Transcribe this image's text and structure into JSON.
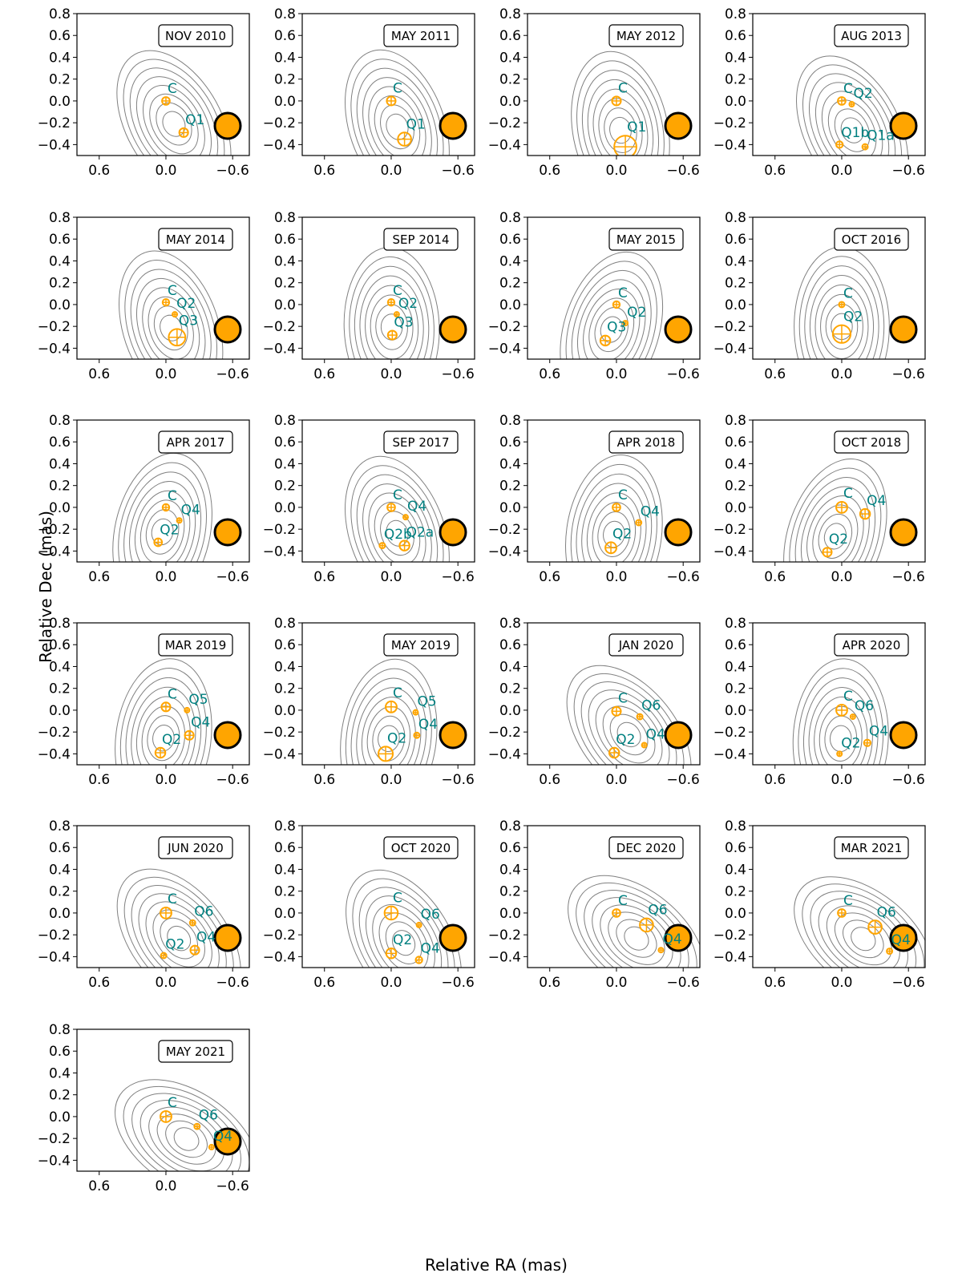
{
  "figure": {
    "xlabel": "Relative RA (mas)",
    "ylabel": "Relative Dec (mas)"
  },
  "style": {
    "component_color": "#FFA500",
    "label_color": "#008080",
    "contour_color": "#808080",
    "beam_fill": "#FFA500",
    "beam_edge": "#000000"
  },
  "chart_data": [
    {
      "type": "scatter",
      "title": "NOV 2010",
      "xlim": [
        0.8,
        -0.75
      ],
      "ylim": [
        -0.5,
        0.8
      ],
      "xticks": [
        "−0.6",
        "0.0",
        "0.6"
      ],
      "yticks": [
        "0.8",
        "0.6",
        "0.4",
        "0.2",
        "0.0",
        "−0.2",
        "−0.4"
      ],
      "components": [
        {
          "label": "C",
          "ra": 0.0,
          "dec": 0.0,
          "size": 0.07
        },
        {
          "label": "Q1",
          "ra": -0.16,
          "dec": -0.29,
          "size": 0.08
        }
      ]
    },
    {
      "type": "scatter",
      "title": "MAY 2011",
      "xlim": [
        0.8,
        -0.75
      ],
      "ylim": [
        -0.5,
        0.8
      ],
      "xticks": [
        "−0.6",
        "0.0",
        "0.6"
      ],
      "yticks": [
        "0.8",
        "0.6",
        "0.4",
        "0.2",
        "0.0",
        "−0.2",
        "−0.4"
      ],
      "components": [
        {
          "label": "C",
          "ra": 0.0,
          "dec": 0.0,
          "size": 0.08
        },
        {
          "label": "Q1",
          "ra": -0.12,
          "dec": -0.35,
          "size": 0.12
        }
      ]
    },
    {
      "type": "scatter",
      "title": "MAY 2012",
      "xlim": [
        0.8,
        -0.75
      ],
      "ylim": [
        -0.5,
        0.8
      ],
      "xticks": [
        "−0.6",
        "0.0",
        "0.6"
      ],
      "yticks": [
        "0.8",
        "0.6",
        "0.4",
        "0.2",
        "0.0",
        "−0.2",
        "−0.4"
      ],
      "components": [
        {
          "label": "C",
          "ra": 0.0,
          "dec": 0.0,
          "size": 0.08
        },
        {
          "label": "Q1",
          "ra": -0.08,
          "dec": -0.42,
          "size": 0.2
        }
      ]
    },
    {
      "type": "scatter",
      "title": "AUG 2013",
      "xlim": [
        0.8,
        -0.75
      ],
      "ylim": [
        -0.5,
        0.8
      ],
      "xticks": [
        "−0.6",
        "0.0",
        "0.6"
      ],
      "yticks": [
        "0.8",
        "0.6",
        "0.4",
        "0.2",
        "0.0",
        "−0.2",
        "−0.4"
      ],
      "components": [
        {
          "label": "C",
          "ra": 0.0,
          "dec": 0.0,
          "size": 0.07
        },
        {
          "label": "Q2",
          "ra": -0.09,
          "dec": -0.03,
          "size": 0.025
        },
        {
          "label": "Q1a",
          "ra": -0.21,
          "dec": -0.42,
          "size": 0.05
        },
        {
          "label": "Q1b",
          "ra": 0.02,
          "dec": -0.4,
          "size": 0.06
        }
      ]
    },
    {
      "type": "scatter",
      "title": "MAY 2014",
      "xlim": [
        0.8,
        -0.75
      ],
      "ylim": [
        -0.5,
        0.8
      ],
      "xticks": [
        "−0.6",
        "0.0",
        "0.6"
      ],
      "yticks": [
        "0.8",
        "0.6",
        "0.4",
        "0.2",
        "0.0",
        "−0.2",
        "−0.4"
      ],
      "components": [
        {
          "label": "C",
          "ra": 0.0,
          "dec": 0.02,
          "size": 0.06
        },
        {
          "label": "Q2",
          "ra": -0.08,
          "dec": -0.09,
          "size": 0.04
        },
        {
          "label": "Q3",
          "ra": -0.1,
          "dec": -0.3,
          "size": 0.15
        }
      ]
    },
    {
      "type": "scatter",
      "title": "SEP 2014",
      "xlim": [
        0.8,
        -0.75
      ],
      "ylim": [
        -0.5,
        0.8
      ],
      "xticks": [
        "−0.6",
        "0.0",
        "0.6"
      ],
      "yticks": [
        "0.8",
        "0.6",
        "0.4",
        "0.2",
        "0.0",
        "−0.2",
        "−0.4"
      ],
      "components": [
        {
          "label": "C",
          "ra": 0.0,
          "dec": 0.02,
          "size": 0.06
        },
        {
          "label": "Q2",
          "ra": -0.05,
          "dec": -0.09,
          "size": 0.04
        },
        {
          "label": "Q3",
          "ra": -0.01,
          "dec": -0.28,
          "size": 0.08
        }
      ]
    },
    {
      "type": "scatter",
      "title": "MAY 2015",
      "xlim": [
        0.8,
        -0.75
      ],
      "ylim": [
        -0.5,
        0.8
      ],
      "xticks": [
        "−0.6",
        "0.0",
        "0.6"
      ],
      "yticks": [
        "0.8",
        "0.6",
        "0.4",
        "0.2",
        "0.0",
        "−0.2",
        "−0.4"
      ],
      "components": [
        {
          "label": "C",
          "ra": 0.0,
          "dec": 0.0,
          "size": 0.06
        },
        {
          "label": "Q2",
          "ra": -0.08,
          "dec": -0.17,
          "size": 0.04
        },
        {
          "label": "Q3",
          "ra": 0.1,
          "dec": -0.33,
          "size": 0.09
        }
      ]
    },
    {
      "type": "scatter",
      "title": "OCT 2016",
      "xlim": [
        0.8,
        -0.75
      ],
      "ylim": [
        -0.5,
        0.8
      ],
      "xticks": [
        "−0.6",
        "0.0",
        "0.6"
      ],
      "yticks": [
        "0.8",
        "0.6",
        "0.4",
        "0.2",
        "0.0",
        "−0.2",
        "−0.4"
      ],
      "components": [
        {
          "label": "C",
          "ra": 0.0,
          "dec": 0.0,
          "size": 0.05
        },
        {
          "label": "Q2",
          "ra": 0.0,
          "dec": -0.27,
          "size": 0.16
        }
      ]
    },
    {
      "type": "scatter",
      "title": "APR 2017",
      "xlim": [
        0.8,
        -0.75
      ],
      "ylim": [
        -0.5,
        0.8
      ],
      "xticks": [
        "−0.6",
        "0.0",
        "0.6"
      ],
      "yticks": [
        "0.8",
        "0.6",
        "0.4",
        "0.2",
        "0.0",
        "−0.2",
        "−0.4"
      ],
      "components": [
        {
          "label": "C",
          "ra": 0.0,
          "dec": 0.0,
          "size": 0.06
        },
        {
          "label": "Q4",
          "ra": -0.12,
          "dec": -0.12,
          "size": 0.04
        },
        {
          "label": "Q2",
          "ra": 0.07,
          "dec": -0.32,
          "size": 0.07
        }
      ]
    },
    {
      "type": "scatter",
      "title": "SEP 2017",
      "xlim": [
        0.8,
        -0.75
      ],
      "ylim": [
        -0.5,
        0.8
      ],
      "xticks": [
        "−0.6",
        "0.0",
        "0.6"
      ],
      "yticks": [
        "0.8",
        "0.6",
        "0.4",
        "0.2",
        "0.0",
        "−0.2",
        "−0.4"
      ],
      "components": [
        {
          "label": "C",
          "ra": 0.0,
          "dec": 0.0,
          "size": 0.07
        },
        {
          "label": "Q4",
          "ra": -0.13,
          "dec": -0.09,
          "size": 0.04
        },
        {
          "label": "Q2a",
          "ra": -0.12,
          "dec": -0.35,
          "size": 0.09
        },
        {
          "label": "Q2b",
          "ra": 0.08,
          "dec": -0.35,
          "size": 0.05
        }
      ]
    },
    {
      "type": "scatter",
      "title": "APR 2018",
      "xlim": [
        0.8,
        -0.75
      ],
      "ylim": [
        -0.5,
        0.8
      ],
      "xticks": [
        "−0.6",
        "0.0",
        "0.6"
      ],
      "yticks": [
        "0.8",
        "0.6",
        "0.4",
        "0.2",
        "0.0",
        "−0.2",
        "−0.4"
      ],
      "components": [
        {
          "label": "C",
          "ra": 0.0,
          "dec": 0.0,
          "size": 0.07
        },
        {
          "label": "Q4",
          "ra": -0.2,
          "dec": -0.14,
          "size": 0.05
        },
        {
          "label": "Q2",
          "ra": 0.05,
          "dec": -0.37,
          "size": 0.1
        }
      ]
    },
    {
      "type": "scatter",
      "title": "OCT 2018",
      "xlim": [
        0.8,
        -0.75
      ],
      "ylim": [
        -0.5,
        0.8
      ],
      "xticks": [
        "−0.6",
        "0.0",
        "0.6"
      ],
      "yticks": [
        "0.8",
        "0.6",
        "0.4",
        "0.2",
        "0.0",
        "−0.2",
        "−0.4"
      ],
      "components": [
        {
          "label": "C",
          "ra": 0.0,
          "dec": 0.0,
          "size": 0.1
        },
        {
          "label": "Q4",
          "ra": -0.21,
          "dec": -0.06,
          "size": 0.09
        },
        {
          "label": "Q2",
          "ra": 0.13,
          "dec": -0.41,
          "size": 0.08
        }
      ]
    },
    {
      "type": "scatter",
      "title": "MAR 2019",
      "xlim": [
        0.8,
        -0.75
      ],
      "ylim": [
        -0.5,
        0.8
      ],
      "xticks": [
        "−0.6",
        "0.0",
        "0.6"
      ],
      "yticks": [
        "0.8",
        "0.6",
        "0.4",
        "0.2",
        "0.0",
        "−0.2",
        "−0.4"
      ],
      "components": [
        {
          "label": "C",
          "ra": 0.0,
          "dec": 0.03,
          "size": 0.08
        },
        {
          "label": "Q5",
          "ra": -0.19,
          "dec": 0.0,
          "size": 0.03
        },
        {
          "label": "Q4",
          "ra": -0.21,
          "dec": -0.23,
          "size": 0.08
        },
        {
          "label": "Q2",
          "ra": 0.05,
          "dec": -0.39,
          "size": 0.09
        }
      ]
    },
    {
      "type": "scatter",
      "title": "MAY 2019",
      "xlim": [
        0.8,
        -0.75
      ],
      "ylim": [
        -0.5,
        0.8
      ],
      "xticks": [
        "−0.6",
        "0.0",
        "0.6"
      ],
      "yticks": [
        "0.8",
        "0.6",
        "0.4",
        "0.2",
        "0.0",
        "−0.2",
        "−0.4"
      ],
      "components": [
        {
          "label": "C",
          "ra": 0.0,
          "dec": 0.03,
          "size": 0.1
        },
        {
          "label": "Q5",
          "ra": -0.22,
          "dec": -0.02,
          "size": 0.04
        },
        {
          "label": "Q4",
          "ra": -0.23,
          "dec": -0.23,
          "size": 0.05
        },
        {
          "label": "Q2",
          "ra": 0.05,
          "dec": -0.4,
          "size": 0.13
        }
      ]
    },
    {
      "type": "scatter",
      "title": "JAN 2020",
      "xlim": [
        0.8,
        -0.75
      ],
      "ylim": [
        -0.5,
        0.8
      ],
      "xticks": [
        "−0.6",
        "0.0",
        "0.6"
      ],
      "yticks": [
        "0.8",
        "0.6",
        "0.4",
        "0.2",
        "0.0",
        "−0.2",
        "−0.4"
      ],
      "components": [
        {
          "label": "C",
          "ra": 0.0,
          "dec": -0.01,
          "size": 0.08
        },
        {
          "label": "Q6",
          "ra": -0.21,
          "dec": -0.06,
          "size": 0.05
        },
        {
          "label": "Q4",
          "ra": -0.25,
          "dec": -0.32,
          "size": 0.04
        },
        {
          "label": "Q2",
          "ra": 0.02,
          "dec": -0.39,
          "size": 0.09
        }
      ]
    },
    {
      "type": "scatter",
      "title": "APR 2020",
      "xlim": [
        0.8,
        -0.75
      ],
      "ylim": [
        -0.5,
        0.8
      ],
      "xticks": [
        "−0.6",
        "0.0",
        "0.6"
      ],
      "yticks": [
        "0.8",
        "0.6",
        "0.4",
        "0.2",
        "0.0",
        "−0.2",
        "−0.4"
      ],
      "components": [
        {
          "label": "C",
          "ra": 0.0,
          "dec": 0.0,
          "size": 0.1
        },
        {
          "label": "Q6",
          "ra": -0.1,
          "dec": -0.06,
          "size": 0.03
        },
        {
          "label": "Q4",
          "ra": -0.23,
          "dec": -0.3,
          "size": 0.06
        },
        {
          "label": "Q2",
          "ra": 0.02,
          "dec": -0.4,
          "size": 0.02
        }
      ]
    },
    {
      "type": "scatter",
      "title": "JUN 2020",
      "xlim": [
        0.8,
        -0.75
      ],
      "ylim": [
        -0.5,
        0.8
      ],
      "xticks": [
        "−0.6",
        "0.0",
        "0.6"
      ],
      "yticks": [
        "0.8",
        "0.6",
        "0.4",
        "0.2",
        "0.0",
        "−0.2",
        "−0.4"
      ],
      "components": [
        {
          "label": "C",
          "ra": 0.0,
          "dec": 0.0,
          "size": 0.1
        },
        {
          "label": "Q6",
          "ra": -0.24,
          "dec": -0.09,
          "size": 0.05
        },
        {
          "label": "Q4",
          "ra": -0.26,
          "dec": -0.34,
          "size": 0.08
        },
        {
          "label": "Q2",
          "ra": 0.02,
          "dec": -0.39,
          "size": 0.05
        }
      ]
    },
    {
      "type": "scatter",
      "title": "OCT 2020",
      "xlim": [
        0.8,
        -0.75
      ],
      "ylim": [
        -0.5,
        0.8
      ],
      "xticks": [
        "−0.6",
        "0.0",
        "0.6"
      ],
      "yticks": [
        "0.8",
        "0.6",
        "0.4",
        "0.2",
        "0.0",
        "−0.2",
        "−0.4"
      ],
      "components": [
        {
          "label": "C",
          "ra": 0.0,
          "dec": 0.0,
          "size": 0.12
        },
        {
          "label": "Q6",
          "ra": -0.25,
          "dec": -0.11,
          "size": 0.04
        },
        {
          "label": "Q4",
          "ra": -0.25,
          "dec": -0.43,
          "size": 0.06
        },
        {
          "label": "Q2",
          "ra": 0.0,
          "dec": -0.37,
          "size": 0.09
        }
      ]
    },
    {
      "type": "scatter",
      "title": "DEC 2020",
      "xlim": [
        0.8,
        -0.75
      ],
      "ylim": [
        -0.5,
        0.8
      ],
      "xticks": [
        "−0.6",
        "0.0",
        "0.6"
      ],
      "yticks": [
        "0.8",
        "0.6",
        "0.4",
        "0.2",
        "0.0",
        "−0.2",
        "−0.4"
      ],
      "components": [
        {
          "label": "C",
          "ra": 0.0,
          "dec": 0.0,
          "size": 0.07
        },
        {
          "label": "Q6",
          "ra": -0.27,
          "dec": -0.11,
          "size": 0.12
        },
        {
          "label": "Q4",
          "ra": -0.4,
          "dec": -0.34,
          "size": 0.015
        }
      ]
    },
    {
      "type": "scatter",
      "title": "MAR 2021",
      "xlim": [
        0.8,
        -0.75
      ],
      "ylim": [
        -0.5,
        0.8
      ],
      "xticks": [
        "−0.6",
        "0.0",
        "0.6"
      ],
      "yticks": [
        "0.8",
        "0.6",
        "0.4",
        "0.2",
        "0.0",
        "−0.2",
        "−0.4"
      ],
      "components": [
        {
          "label": "C",
          "ra": 0.0,
          "dec": 0.0,
          "size": 0.07
        },
        {
          "label": "Q6",
          "ra": -0.3,
          "dec": -0.13,
          "size": 0.12
        },
        {
          "label": "Q4",
          "ra": -0.43,
          "dec": -0.35,
          "size": 0.05
        }
      ]
    },
    {
      "type": "scatter",
      "title": "MAY 2021",
      "xlim": [
        0.8,
        -0.75
      ],
      "ylim": [
        -0.5,
        0.8
      ],
      "xticks": [
        "−0.6",
        "0.0",
        "0.6"
      ],
      "yticks": [
        "0.8",
        "0.6",
        "0.4",
        "0.2",
        "0.0",
        "−0.2",
        "−0.4"
      ],
      "components": [
        {
          "label": "C",
          "ra": 0.0,
          "dec": 0.0,
          "size": 0.1
        },
        {
          "label": "Q6",
          "ra": -0.28,
          "dec": -0.09,
          "size": 0.05
        },
        {
          "label": "Q4",
          "ra": -0.41,
          "dec": -0.28,
          "size": 0.015
        }
      ]
    }
  ]
}
